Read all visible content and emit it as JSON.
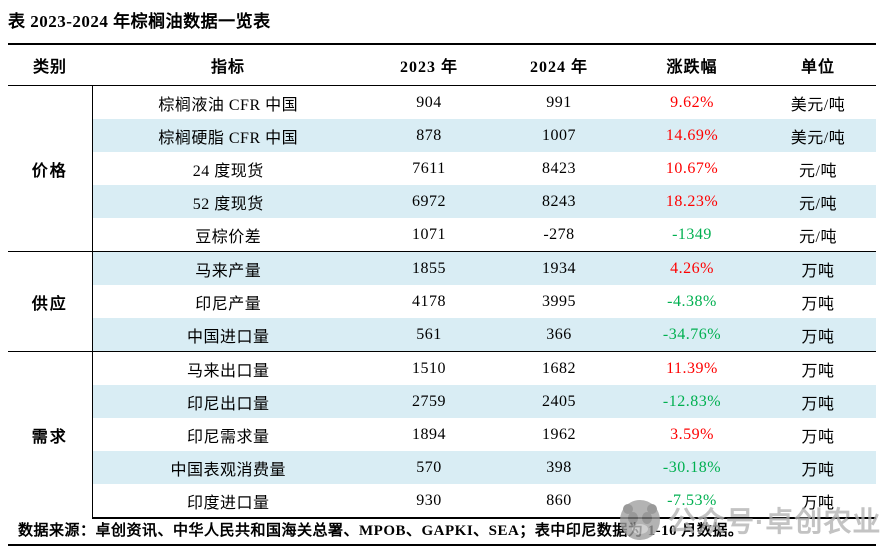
{
  "title": "表 2023-2024 年棕榈油数据一览表",
  "footer": {
    "source_note": "数据来源：卓创资讯、中华人民共和国海关总署、MPOB、GAPKI、SEA；表中印尼数据为 1-10 月数据。"
  },
  "watermark": {
    "text": "公众号·卓创农业",
    "icon": "panda-account-logo"
  },
  "colors": {
    "stripe_blue": "#d9edf4",
    "increase_red": "#fe0000",
    "decrease_green": "#00b050",
    "watermark_gray": "#b3b3b3"
  },
  "chart_data": {
    "type": "table",
    "title": "表 2023-2024 年棕榈油数据一览表",
    "columns": [
      "类别",
      "指标",
      "2023 年",
      "2024 年",
      "涨跌幅",
      "单位"
    ],
    "column_keys": [
      "category",
      "indicator",
      "year-2023",
      "year-2024",
      "change",
      "unit"
    ],
    "sections": [
      {
        "category": "价格",
        "rows": [
          {
            "indicator": "棕榈液油 CFR 中国",
            "y2023": "904",
            "y2024": "991",
            "change": "9.62%",
            "change_color": "red",
            "unit": "美元/吨"
          },
          {
            "indicator": "棕榈硬脂 CFR 中国",
            "y2023": "878",
            "y2024": "1007",
            "change": "14.69%",
            "change_color": "red",
            "unit": "美元/吨"
          },
          {
            "indicator": "24 度现货",
            "y2023": "7611",
            "y2024": "8423",
            "change": "10.67%",
            "change_color": "red",
            "unit": "元/吨"
          },
          {
            "indicator": "52 度现货",
            "y2023": "6972",
            "y2024": "8243",
            "change": "18.23%",
            "change_color": "red",
            "unit": "元/吨"
          },
          {
            "indicator": "豆棕价差",
            "y2023": "1071",
            "y2024": "-278",
            "change": "-1349",
            "change_color": "green",
            "unit": "元/吨"
          }
        ]
      },
      {
        "category": "供应",
        "rows": [
          {
            "indicator": "马来产量",
            "y2023": "1855",
            "y2024": "1934",
            "change": "4.26%",
            "change_color": "red",
            "unit": "万吨"
          },
          {
            "indicator": "印尼产量",
            "y2023": "4178",
            "y2024": "3995",
            "change": "-4.38%",
            "change_color": "green",
            "unit": "万吨"
          },
          {
            "indicator": "中国进口量",
            "y2023": "561",
            "y2024": "366",
            "change": "-34.76%",
            "change_color": "green",
            "unit": "万吨"
          }
        ]
      },
      {
        "category": "需求",
        "rows": [
          {
            "indicator": "马来出口量",
            "y2023": "1510",
            "y2024": "1682",
            "change": "11.39%",
            "change_color": "red",
            "unit": "万吨"
          },
          {
            "indicator": "印尼出口量",
            "y2023": "2759",
            "y2024": "2405",
            "change": "-12.83%",
            "change_color": "green",
            "unit": "万吨"
          },
          {
            "indicator": "印尼需求量",
            "y2023": "1894",
            "y2024": "1962",
            "change": "3.59%",
            "change_color": "red",
            "unit": "万吨"
          },
          {
            "indicator": "中国表观消费量",
            "y2023": "570",
            "y2024": "398",
            "change": "-30.18%",
            "change_color": "green",
            "unit": "万吨"
          },
          {
            "indicator": "印度进口量",
            "y2023": "930",
            "y2024": "860",
            "change": "-7.53%",
            "change_color": "green",
            "unit": "万吨"
          }
        ]
      }
    ]
  }
}
